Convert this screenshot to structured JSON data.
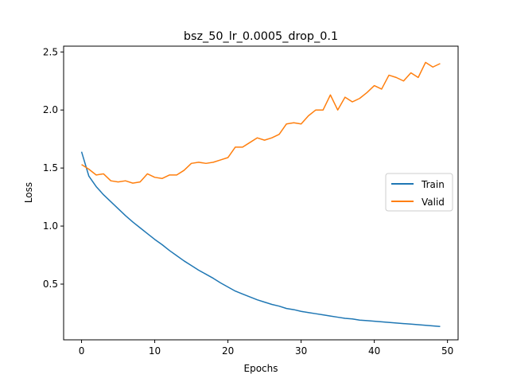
{
  "chart_data": {
    "type": "line",
    "title": "bsz_50_lr_0.0005_drop_0.1",
    "xlabel": "Epochs",
    "ylabel": "Loss",
    "xlim": [
      -2.45,
      51.45
    ],
    "ylim": [
      0.02,
      2.55
    ],
    "xticks": [
      0,
      10,
      20,
      30,
      40,
      50
    ],
    "yticks": [
      0.5,
      1.0,
      1.5,
      2.0,
      2.5
    ],
    "xtick_labels": [
      "0",
      "10",
      "20",
      "30",
      "40",
      "50"
    ],
    "ytick_labels": [
      "0.5",
      "1.0",
      "1.5",
      "2.0",
      "2.5"
    ],
    "grid": false,
    "legend_position": "center-right",
    "x": [
      0,
      1,
      2,
      3,
      4,
      5,
      6,
      7,
      8,
      9,
      10,
      11,
      12,
      13,
      14,
      15,
      16,
      17,
      18,
      19,
      20,
      21,
      22,
      23,
      24,
      25,
      26,
      27,
      28,
      29,
      30,
      31,
      32,
      33,
      34,
      35,
      36,
      37,
      38,
      39,
      40,
      41,
      42,
      43,
      44,
      45,
      46,
      47,
      48,
      49
    ],
    "series": [
      {
        "name": "Train",
        "color": "#1f77b4",
        "values": [
          1.64,
          1.43,
          1.34,
          1.27,
          1.21,
          1.15,
          1.09,
          1.035,
          0.985,
          0.935,
          0.885,
          0.84,
          0.79,
          0.745,
          0.7,
          0.66,
          0.62,
          0.585,
          0.55,
          0.51,
          0.475,
          0.44,
          0.415,
          0.39,
          0.365,
          0.345,
          0.325,
          0.31,
          0.29,
          0.28,
          0.265,
          0.255,
          0.245,
          0.235,
          0.225,
          0.215,
          0.205,
          0.2,
          0.19,
          0.185,
          0.18,
          0.175,
          0.17,
          0.165,
          0.16,
          0.155,
          0.15,
          0.145,
          0.14,
          0.135
        ]
      },
      {
        "name": "Valid",
        "color": "#ff7f0e",
        "values": [
          1.53,
          1.49,
          1.44,
          1.45,
          1.39,
          1.38,
          1.39,
          1.37,
          1.38,
          1.45,
          1.42,
          1.41,
          1.44,
          1.44,
          1.48,
          1.54,
          1.55,
          1.54,
          1.55,
          1.57,
          1.59,
          1.68,
          1.68,
          1.72,
          1.76,
          1.74,
          1.76,
          1.79,
          1.88,
          1.89,
          1.88,
          1.95,
          2.0,
          2.0,
          2.13,
          2.0,
          2.11,
          2.07,
          2.1,
          2.15,
          2.21,
          2.18,
          2.3,
          2.28,
          2.25,
          2.32,
          2.28,
          2.41,
          2.37,
          2.4
        ]
      }
    ]
  }
}
